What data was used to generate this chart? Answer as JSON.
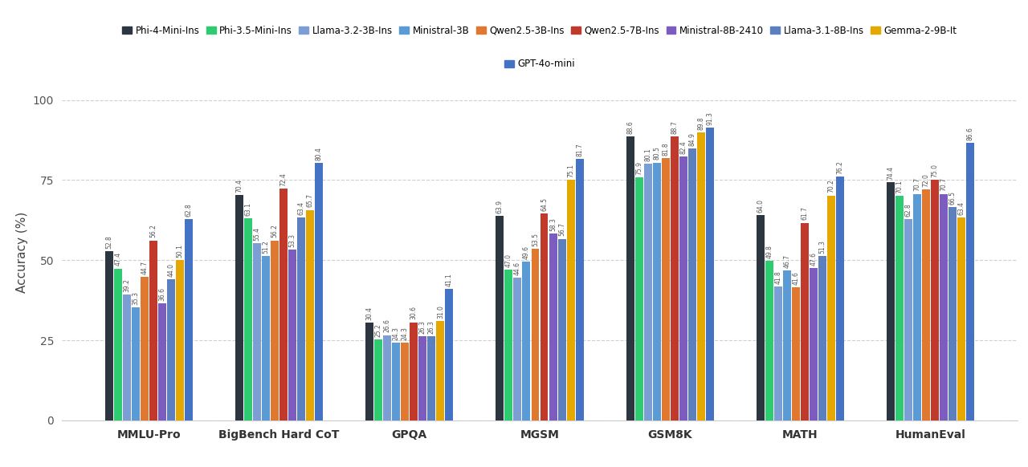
{
  "benchmarks": [
    "MMLU-Pro",
    "BigBench Hard CoT",
    "GPQA",
    "MGSM",
    "GSM8K",
    "MATH",
    "HumanEval"
  ],
  "models": [
    "Phi-4-Mini-Ins",
    "Phi-3.5-Mini-Ins",
    "Llama-3.2-3B-Ins",
    "Ministral-3B",
    "Qwen2.5-3B-Ins",
    "Qwen2.5-7B-Ins",
    "Ministral-8B-2410",
    "Llama-3.1-8B-Ins",
    "Gemma-2-9B-It",
    "GPT-4o-mini"
  ],
  "colors": [
    "#2b3640",
    "#2ecc71",
    "#7b9fd4",
    "#5b9bd5",
    "#e07830",
    "#c0392b",
    "#7c5cbf",
    "#5b7fbf",
    "#e5a800",
    "#4472c4"
  ],
  "values": {
    "MMLU-Pro": [
      52.8,
      47.4,
      39.2,
      35.3,
      44.7,
      56.2,
      36.6,
      44.0,
      50.1,
      62.8
    ],
    "BigBench Hard CoT": [
      70.4,
      63.1,
      55.4,
      51.2,
      56.2,
      72.4,
      53.3,
      63.4,
      65.7,
      80.4
    ],
    "GPQA": [
      30.4,
      25.2,
      26.6,
      24.3,
      24.3,
      30.6,
      26.3,
      26.3,
      31.0,
      41.1
    ],
    "MGSM": [
      63.9,
      47.0,
      44.6,
      49.6,
      53.5,
      64.5,
      58.3,
      56.7,
      75.1,
      81.7
    ],
    "GSM8K": [
      88.6,
      75.9,
      80.1,
      80.5,
      81.8,
      88.7,
      82.4,
      84.9,
      89.8,
      91.3
    ],
    "MATH": [
      64.0,
      49.8,
      41.8,
      46.7,
      41.6,
      61.7,
      47.6,
      51.3,
      70.2,
      76.2
    ],
    "HumanEval": [
      74.4,
      70.1,
      62.8,
      70.7,
      72.0,
      75.0,
      70.7,
      66.5,
      63.4,
      86.6
    ]
  },
  "ylabel": "Accuracy (%)",
  "ylim": [
    0,
    105
  ],
  "yticks": [
    0,
    25,
    50,
    75,
    100
  ],
  "background_color": "#ffffff",
  "grid_color": "#d0d0d0",
  "bar_label_fontsize": 5.5,
  "legend_fontsize": 8.5,
  "axis_label_fontsize": 11,
  "tick_label_fontsize": 10
}
